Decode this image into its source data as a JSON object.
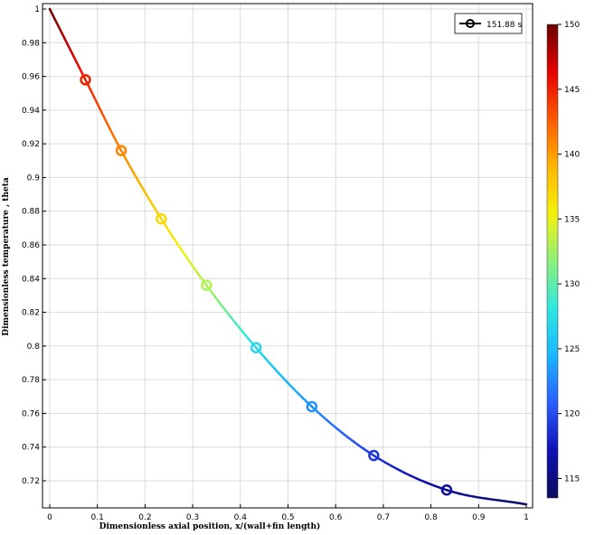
{
  "chart_data": {
    "type": "line",
    "xlabel": "Dimensionless axial position, x/(wall+fin length)",
    "ylabel": "Dimensionless temperature , theta",
    "xlim": [
      0,
      1
    ],
    "ylim": [
      0.705,
      1.0
    ],
    "x_ticks": [
      0,
      0.1,
      0.2,
      0.3,
      0.4,
      0.5,
      0.6,
      0.7,
      0.8,
      0.9,
      1
    ],
    "y_ticks": [
      0.72,
      0.74,
      0.76,
      0.78,
      0.8,
      0.82,
      0.84,
      0.86,
      0.88,
      0.9,
      0.92,
      0.94,
      0.96,
      0.98,
      1
    ],
    "grid": true,
    "legend": {
      "entry": "151.88 s",
      "placement": "top-right"
    },
    "series": [
      {
        "name": "151.88 s",
        "x": [
          0,
          0.075,
          0.15,
          0.234,
          0.329,
          0.433,
          0.55,
          0.68,
          0.833,
          1.0
        ],
        "y": [
          1.0,
          0.958,
          0.916,
          0.8755,
          0.836,
          0.799,
          0.764,
          0.735,
          0.7145,
          0.706
        ],
        "color_values": [
          150,
          145,
          141,
          137,
          133,
          127,
          123,
          119,
          116,
          114
        ]
      }
    ],
    "markers": {
      "x": [
        0.075,
        0.15,
        0.234,
        0.329,
        0.433,
        0.55,
        0.68,
        0.833
      ],
      "y": [
        0.958,
        0.916,
        0.8755,
        0.836,
        0.799,
        0.764,
        0.735,
        0.7145
      ]
    },
    "colorbar": {
      "min": 113.5,
      "max": 150,
      "ticks": [
        115,
        120,
        125,
        130,
        135,
        140,
        145,
        150
      ],
      "colormap": [
        "#0b0b5e",
        "#1010b4",
        "#2b5dff",
        "#19b5ff",
        "#2ee7e0",
        "#8cf07a",
        "#f5f20b",
        "#ffb500",
        "#ff5a00",
        "#e60000",
        "#6b0000"
      ]
    }
  }
}
